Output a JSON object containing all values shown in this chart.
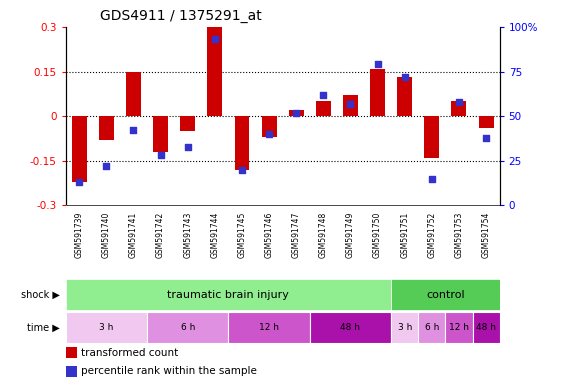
{
  "title": "GDS4911 / 1375291_at",
  "samples": [
    "GSM591739",
    "GSM591740",
    "GSM591741",
    "GSM591742",
    "GSM591743",
    "GSM591744",
    "GSM591745",
    "GSM591746",
    "GSM591747",
    "GSM591748",
    "GSM591749",
    "GSM591750",
    "GSM591751",
    "GSM591752",
    "GSM591753",
    "GSM591754"
  ],
  "red_values": [
    -0.22,
    -0.08,
    0.15,
    -0.12,
    -0.05,
    0.3,
    -0.18,
    -0.07,
    0.02,
    0.05,
    0.07,
    0.16,
    0.13,
    -0.14,
    0.05,
    -0.04
  ],
  "blue_values": [
    13,
    22,
    42,
    28,
    33,
    93,
    20,
    40,
    52,
    62,
    57,
    79,
    72,
    15,
    58,
    38
  ],
  "ylim_left": [
    -0.3,
    0.3
  ],
  "ylim_right": [
    0,
    100
  ],
  "yticks_left": [
    -0.3,
    -0.15,
    0.0,
    0.15,
    0.3
  ],
  "yticks_right": [
    0,
    25,
    50,
    75,
    100
  ],
  "ytick_labels_left": [
    "-0.3",
    "-0.15",
    "0",
    "0.15",
    "0.3"
  ],
  "ytick_labels_right": [
    "0",
    "25",
    "50",
    "75",
    "100%"
  ],
  "red_color": "#CC0000",
  "blue_color": "#3333CC",
  "background_color": "#FFFFFF",
  "sample_bg_color": "#C8C8C8",
  "shock_tbi_color": "#90EE90",
  "shock_ctrl_color": "#55CC55",
  "time_colors": [
    "#F0C8F0",
    "#E090E0",
    "#CC55CC",
    "#AA11AA",
    "#F0C8F0",
    "#E090E0",
    "#CC55CC",
    "#AA11AA"
  ],
  "time_groups": [
    {
      "label": "3 h",
      "start": 0,
      "end": 3
    },
    {
      "label": "6 h",
      "start": 3,
      "end": 6
    },
    {
      "label": "12 h",
      "start": 6,
      "end": 9
    },
    {
      "label": "48 h",
      "start": 9,
      "end": 12
    },
    {
      "label": "3 h",
      "start": 12,
      "end": 13
    },
    {
      "label": "6 h",
      "start": 13,
      "end": 14
    },
    {
      "label": "12 h",
      "start": 14,
      "end": 15
    },
    {
      "label": "48 h",
      "start": 15,
      "end": 16
    }
  ]
}
